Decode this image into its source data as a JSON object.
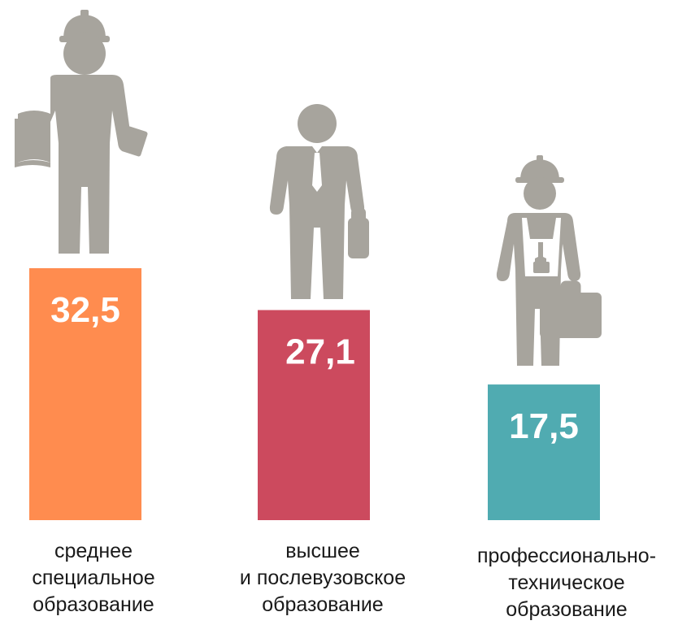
{
  "chart_data": {
    "type": "bar",
    "title": "",
    "xlabel": "",
    "ylabel": "",
    "ylim": [
      0,
      32.5
    ],
    "grid": false,
    "legend": "none",
    "categories": [
      [
        "среднее",
        "специальное",
        "образование"
      ],
      [
        "высшее",
        "и послевузовское",
        "образование"
      ],
      [
        "профессионально-",
        "техническое",
        "образование"
      ]
    ],
    "values": [
      32.5,
      27.1,
      17.5
    ],
    "value_labels": [
      "32,5",
      "27,1",
      "17,5"
    ],
    "colors": [
      "#ff8c4f",
      "#cc4a5e",
      "#50abb1"
    ],
    "icons": [
      "engineer-with-book-icon",
      "businessman-with-briefcase-icon",
      "worker-with-toolbox-icon"
    ]
  }
}
